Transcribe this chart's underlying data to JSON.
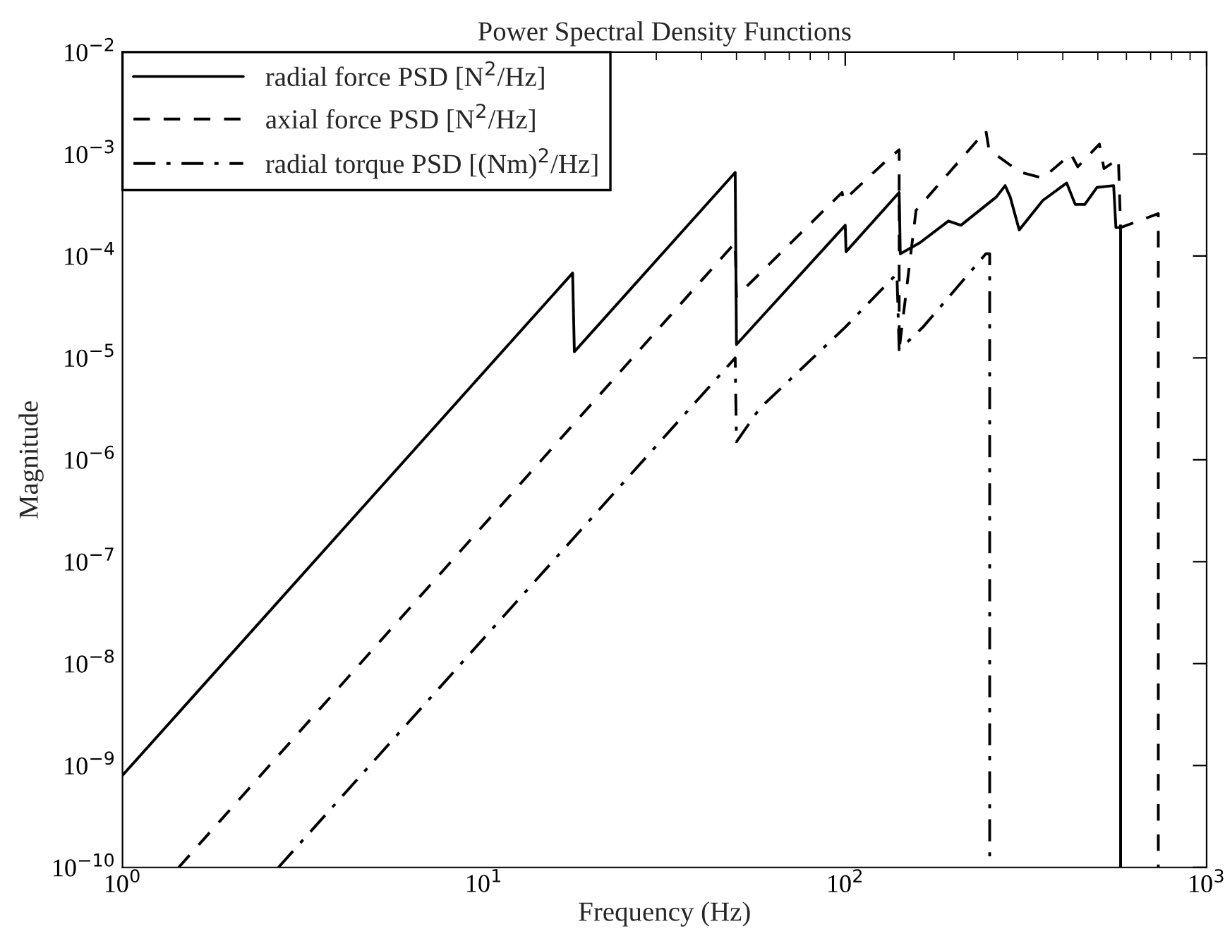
{
  "chart_data": {
    "type": "line",
    "title": "Power Spectral Density Functions",
    "xlabel": "Frequency (Hz)",
    "ylabel": "Magnitude",
    "log": "xy",
    "grid": false,
    "legend": "top left",
    "xlim": [
      1,
      1000
    ],
    "ylim": [
      1e-10,
      0.01
    ],
    "xticks": [
      {
        "value": 1,
        "label": "10$^{0}$"
      },
      {
        "value": 10,
        "label": "10$^{1}$"
      },
      {
        "value": 100,
        "label": "10$^{2}$"
      },
      {
        "value": 1000,
        "label": "10$^{3}$"
      }
    ],
    "yticks": [
      {
        "value": 1e-10,
        "label": "10$^{−10}$"
      },
      {
        "value": 1e-09,
        "label": "10$^{−9}$"
      },
      {
        "value": 1e-08,
        "label": "10$^{−8}$"
      },
      {
        "value": 1e-07,
        "label": "10$^{−7}$"
      },
      {
        "value": 1e-06,
        "label": "10$^{−6}$"
      },
      {
        "value": 1e-05,
        "label": "10$^{−5}$"
      },
      {
        "value": 0.0001,
        "label": "10$^{−4}$"
      },
      {
        "value": 0.001,
        "label": "10$^{−3}$"
      },
      {
        "value": 0.01,
        "label": "10$^{−2}$"
      }
    ],
    "series": [
      {
        "name": "radial force PSD [N$^{2}$/Hz]",
        "color": "#000000",
        "line_style": "solid",
        "x": [
          1,
          17.6,
          17.8,
          49.6,
          50,
          100,
          100.5,
          141,
          142,
          161,
          193,
          209,
          262,
          277,
          286,
          303,
          352,
          410,
          433,
          460,
          497,
          553,
          561,
          578,
          578
        ],
        "values": [
          8e-10,
          6.8e-05,
          1.15e-05,
          0.00066,
          1.35e-05,
          0.0002,
          0.00011,
          0.00042,
          0.000105,
          0.000135,
          0.00022,
          0.0002,
          0.00038,
          0.00049,
          0.00038,
          0.00018,
          0.00035,
          0.00052,
          0.00032,
          0.00032,
          0.00047,
          0.00049,
          0.00019,
          0.00019,
          1e-10
        ]
      },
      {
        "name": "axial force PSD [N$^{2}$/Hz]",
        "color": "#000000",
        "line_style": "dashed",
        "x": [
          1.43,
          49.6,
          50,
          98,
          99,
          133,
          141,
          141,
          157,
          245,
          250,
          286,
          307,
          352,
          421,
          440,
          505,
          520,
          570,
          578,
          735,
          735
        ],
        "values": [
          1e-10,
          0.000135,
          4e-05,
          0.00042,
          0.00035,
          0.00093,
          0.0011,
          1.2e-05,
          0.00028,
          0.0017,
          0.0011,
          0.00078,
          0.00066,
          0.00058,
          0.001,
          0.00075,
          0.00125,
          0.00072,
          0.0009,
          0.00019,
          0.00026,
          1e-10
        ]
      },
      {
        "name": "radial torque PSD [(Nm)$^{2}$/Hz]",
        "color": "#000000",
        "line_style": "dashdot",
        "x": [
          2.7,
          49.6,
          50,
          58,
          100,
          139,
          141,
          164,
          245,
          251,
          251
        ],
        "values": [
          1e-10,
          1e-05,
          1.5e-06,
          3.2e-06,
          2e-05,
          6.7e-05,
          1.2e-05,
          2e-05,
          0.000105,
          0.000105,
          1e-10
        ]
      }
    ]
  }
}
